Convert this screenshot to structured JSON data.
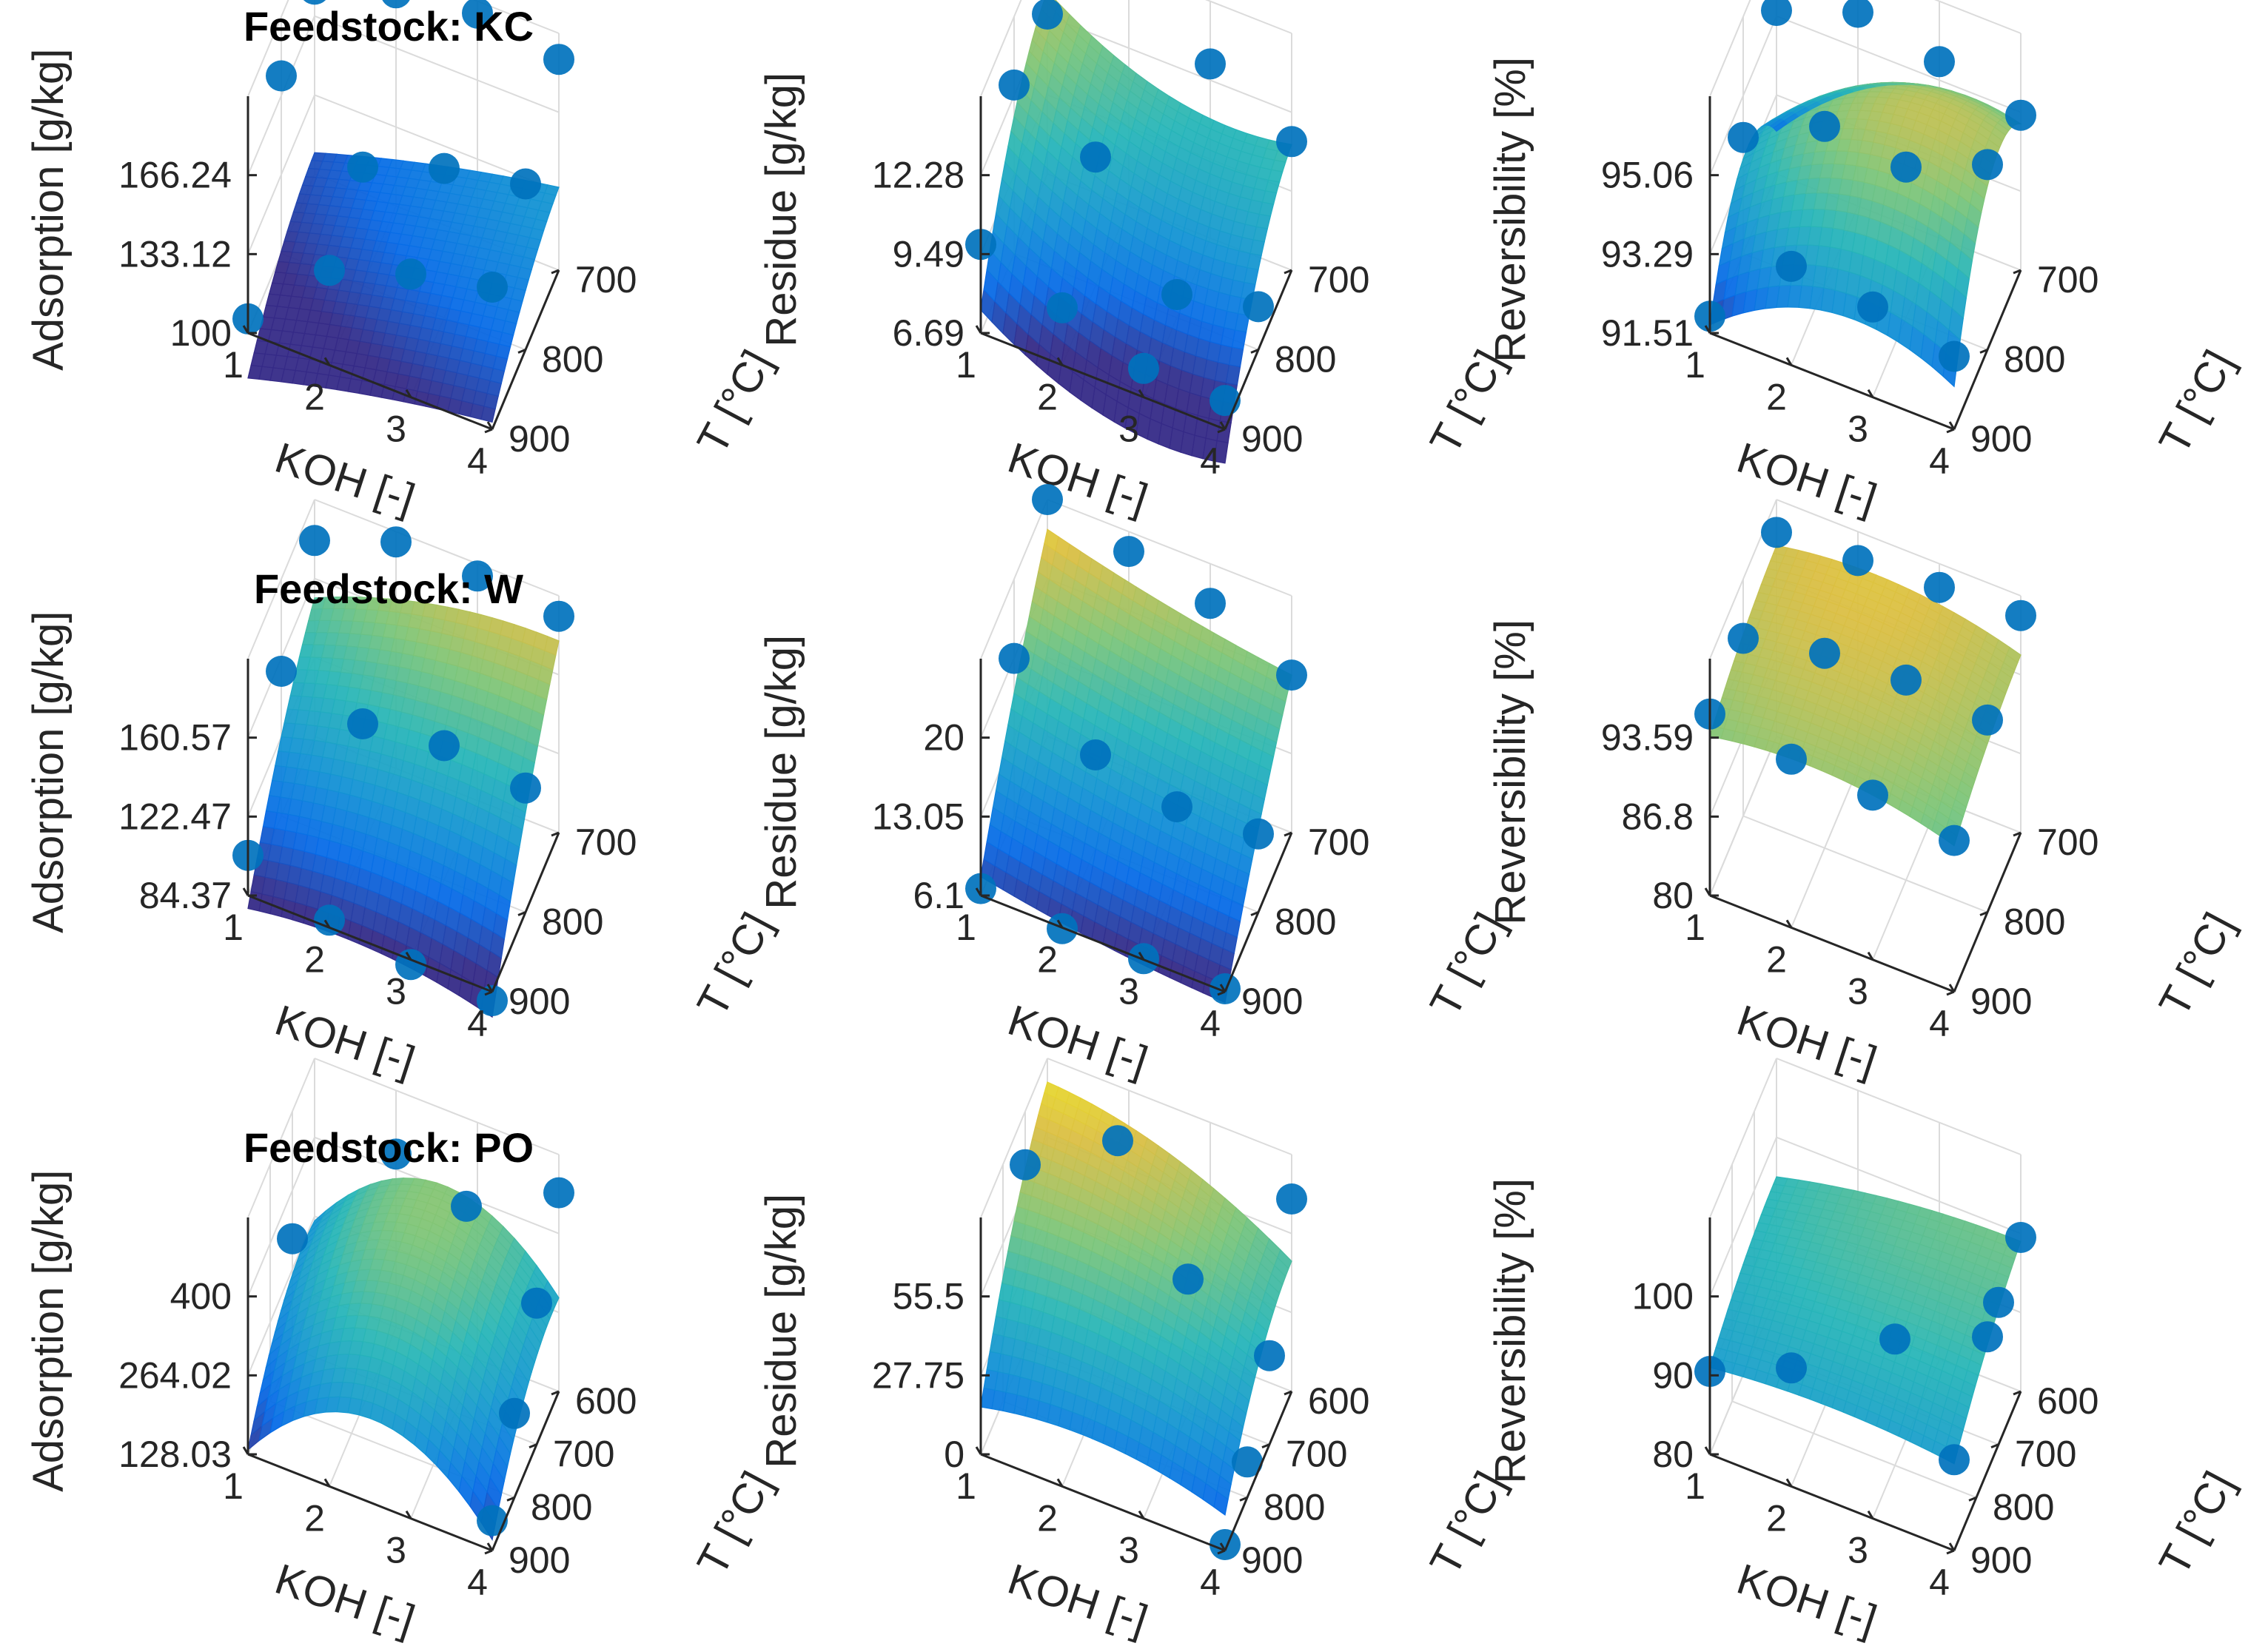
{
  "figure": {
    "colormap": "parula",
    "marker_color": "#0072BD",
    "grid_color": "#DBDBDB"
  },
  "chart_data": [
    {
      "type": "surface3d",
      "row": 0,
      "col": 0,
      "title": "Feedstock: KC",
      "xlabel": "KOH [-]",
      "ylabel": "T [°C]",
      "zlabel": "Adsorption [g/kg]",
      "x_ticks": [
        "1",
        "2",
        "3",
        "4"
      ],
      "y_ticks": [
        "700",
        "800",
        "900"
      ],
      "z_ticks": [
        "100",
        "133.12",
        "166.24"
      ],
      "x_range": [
        1,
        4
      ],
      "y_range": [
        700,
        900
      ],
      "z_range": [
        100,
        200
      ],
      "surface": {
        "c": 115,
        "ax": 12,
        "ay": 15,
        "bxx": -2,
        "byy": -6,
        "bxy": 1
      },
      "points": [
        [
          1,
          900,
          106
        ],
        [
          2,
          900,
          140
        ],
        [
          3,
          900,
          152
        ],
        [
          4,
          900,
          160
        ],
        [
          1,
          800,
          175
        ],
        [
          2,
          800,
          150
        ],
        [
          3,
          800,
          163
        ],
        [
          4,
          800,
          170
        ],
        [
          1,
          700,
          178
        ],
        [
          2,
          700,
          190
        ],
        [
          3,
          700,
          195
        ],
        [
          4,
          700,
          189
        ]
      ]
    },
    {
      "type": "surface3d",
      "row": 0,
      "col": 1,
      "title": "",
      "xlabel": "KOH [-]",
      "ylabel": "T [°C]",
      "zlabel": "Residue [g/kg]",
      "x_ticks": [
        "1",
        "2",
        "3",
        "4"
      ],
      "y_ticks": [
        "700",
        "800",
        "900"
      ],
      "z_ticks": [
        "6.69",
        "9.49",
        "12.28"
      ],
      "x_range": [
        1,
        4
      ],
      "y_range": [
        700,
        900
      ],
      "z_range": [
        6.69,
        15
      ],
      "surface": {
        "c": 9.5,
        "ax": -1,
        "ay": 2.8,
        "bxx": 1,
        "byy": -1.2,
        "bxy": 0
      },
      "points": [
        [
          1,
          900,
          9.8
        ],
        [
          2,
          900,
          8.7
        ],
        [
          3,
          900,
          7.7
        ],
        [
          4,
          900,
          7.7
        ],
        [
          1,
          800,
          12.6
        ],
        [
          2,
          800,
          11.2
        ],
        [
          3,
          800,
          7.5
        ],
        [
          4,
          800,
          8.2
        ],
        [
          1,
          700,
          12.3
        ],
        [
          2,
          700,
          14.5
        ],
        [
          3,
          700,
          12.8
        ],
        [
          4,
          700,
          11.2
        ]
      ]
    },
    {
      "type": "surface3d",
      "row": 0,
      "col": 2,
      "title": "",
      "xlabel": "KOH [-]",
      "ylabel": "T [°C]",
      "zlabel": "Reversibility [%]",
      "x_ticks": [
        "1",
        "2",
        "3",
        "4"
      ],
      "y_ticks": [
        "700",
        "800",
        "900"
      ],
      "z_ticks": [
        "91.51",
        "93.29",
        "95.06"
      ],
      "x_range": [
        1,
        4
      ],
      "y_range": [
        700,
        900
      ],
      "z_range": [
        91.51,
        97
      ],
      "surface": {
        "c": 95.5,
        "ax": 0.8,
        "ay": 0.8,
        "bxx": -1,
        "byy": -1.6,
        "bxy": 0.4
      },
      "points": [
        [
          1,
          900,
          91.9
        ],
        [
          2,
          900,
          93.8
        ],
        [
          3,
          900,
          93.6
        ],
        [
          4,
          900,
          93.2
        ],
        [
          1,
          800,
          94.2
        ],
        [
          2,
          800,
          95.2
        ],
        [
          3,
          800,
          95.0
        ],
        [
          4,
          800,
          95.8
        ],
        [
          1,
          700,
          95.3
        ],
        [
          2,
          700,
          96.0
        ],
        [
          3,
          700,
          95.6
        ],
        [
          4,
          700,
          95.1
        ]
      ]
    },
    {
      "type": "surface3d",
      "row": 1,
      "col": 0,
      "title": "Feedstock: W",
      "xlabel": "KOH [-]",
      "ylabel": "T [°C]",
      "zlabel": "Adsorption [g/kg]",
      "x_ticks": [
        "1",
        "2",
        "3",
        "4"
      ],
      "y_ticks": [
        "700",
        "800",
        "900"
      ],
      "z_ticks": [
        "84.37",
        "122.47",
        "160.57"
      ],
      "x_range": [
        1,
        4
      ],
      "y_range": [
        700,
        900
      ],
      "z_range": [
        84.37,
        200
      ],
      "surface": {
        "c": 135,
        "ax": 5,
        "ay": 45,
        "bxx": -7,
        "byy": -8,
        "bxy": 8
      },
      "points": [
        [
          1,
          900,
          104
        ],
        [
          2,
          900,
          88
        ],
        [
          3,
          900,
          82
        ],
        [
          4,
          900,
          80
        ],
        [
          1,
          800,
          155
        ],
        [
          2,
          800,
          145
        ],
        [
          3,
          800,
          150
        ],
        [
          4,
          800,
          145
        ],
        [
          1,
          700,
          180
        ],
        [
          2,
          700,
          195
        ],
        [
          3,
          700,
          194
        ],
        [
          4,
          700,
          190
        ]
      ]
    },
    {
      "type": "surface3d",
      "row": 1,
      "col": 1,
      "title": "",
      "xlabel": "KOH [-]",
      "ylabel": "T [°C]",
      "zlabel": "Residue [g/kg]",
      "x_ticks": [
        "1",
        "2",
        "3",
        "4"
      ],
      "y_ticks": [
        "700",
        "800",
        "900"
      ],
      "z_ticks": [
        "6.1",
        "13.05",
        "20"
      ],
      "x_range": [
        1,
        4
      ],
      "y_range": [
        700,
        900
      ],
      "z_range": [
        6.1,
        30
      ],
      "surface": {
        "c": 16,
        "ax": -2,
        "ay": 9,
        "bxx": 0.5,
        "byy": -1,
        "bxy": -0.5
      },
      "points": [
        [
          1,
          900,
          6.8
        ],
        [
          2,
          900,
          6.0
        ],
        [
          3,
          900,
          6.2
        ],
        [
          4,
          900,
          6.4
        ],
        [
          1,
          800,
          22
        ],
        [
          2,
          800,
          15.5
        ],
        [
          3,
          800,
          13.5
        ],
        [
          4,
          800,
          14
        ],
        [
          1,
          700,
          30
        ],
        [
          2,
          700,
          28
        ],
        [
          3,
          700,
          26
        ],
        [
          4,
          700,
          22
        ]
      ]
    },
    {
      "type": "surface3d",
      "row": 1,
      "col": 2,
      "title": "",
      "xlabel": "KOH [-]",
      "ylabel": "T [°C]",
      "zlabel": "Reversibility [%]",
      "x_ticks": [
        "1",
        "2",
        "3",
        "4"
      ],
      "y_ticks": [
        "700",
        "800",
        "900"
      ],
      "z_ticks": [
        "80",
        "86.8",
        "93.59"
      ],
      "x_range": [
        1,
        4
      ],
      "y_range": [
        700,
        900
      ],
      "z_range": [
        80,
        98
      ],
      "surface": {
        "c": 94.5,
        "ax": -0.5,
        "ay": 1.2,
        "bxx": -1.2,
        "byy": -0.5,
        "bxy": 0
      },
      "points": [
        [
          1,
          900,
          93.8
        ],
        [
          2,
          900,
          92.8
        ],
        [
          3,
          900,
          92.5
        ],
        [
          4,
          900,
          91.5
        ],
        [
          1,
          800,
          93.5
        ],
        [
          2,
          800,
          94.8
        ],
        [
          3,
          800,
          95.2
        ],
        [
          4,
          800,
          94.6
        ],
        [
          1,
          700,
          95.5
        ],
        [
          2,
          700,
          95.8
        ],
        [
          3,
          700,
          96.2
        ],
        [
          4,
          700,
          96.5
        ]
      ]
    },
    {
      "type": "surface3d",
      "row": 2,
      "col": 0,
      "title": "Feedstock: PO",
      "xlabel": "KOH [-]",
      "ylabel": "T [°C]",
      "zlabel": "Adsorption [g/kg]",
      "x_ticks": [
        "1",
        "2",
        "3",
        "4"
      ],
      "y_ticks": [
        "600",
        "700",
        "800",
        "900"
      ],
      "z_ticks": [
        "128.03",
        "264.02",
        "400"
      ],
      "x_range": [
        1,
        4
      ],
      "y_range": [
        600,
        900
      ],
      "z_range": [
        128.03,
        500
      ],
      "surface": {
        "c": 360,
        "ax": 10,
        "ay": 60,
        "bxx": -120,
        "byy": -40,
        "bxy": 5
      },
      "points": [
        [
          4,
          900,
          175
        ],
        [
          4,
          800,
          260
        ],
        [
          4,
          700,
          350
        ],
        [
          1,
          700,
          300
        ],
        [
          2,
          600,
          400
        ],
        [
          3,
          650,
          410
        ],
        [
          4,
          600,
          440
        ]
      ]
    },
    {
      "type": "surface3d",
      "row": 2,
      "col": 1,
      "title": "",
      "xlabel": "KOH [-]",
      "ylabel": "T [°C]",
      "zlabel": "Residue [g/kg]",
      "x_ticks": [
        "1",
        "2",
        "3",
        "4"
      ],
      "y_ticks": [
        "600",
        "700",
        "800",
        "900"
      ],
      "z_ticks": [
        "0",
        "27.75",
        "55.5"
      ],
      "x_range": [
        1,
        4
      ],
      "y_range": [
        600,
        900
      ],
      "z_range": [
        0,
        80
      ],
      "surface": {
        "c": 50,
        "ax": -8,
        "ay": 22,
        "bxx": -6,
        "byy": -8,
        "bxy": -6
      },
      "points": [
        [
          4,
          900,
          2
        ],
        [
          4,
          800,
          12
        ],
        [
          4,
          700,
          30
        ],
        [
          3,
          700,
          45
        ],
        [
          1,
          700,
          62
        ],
        [
          2,
          650,
          72
        ],
        [
          4,
          600,
          65
        ]
      ]
    },
    {
      "type": "surface3d",
      "row": 2,
      "col": 2,
      "title": "",
      "xlabel": "KOH [-]",
      "ylabel": "T [°C]",
      "zlabel": "Reversibility [%]",
      "x_ticks": [
        "1",
        "2",
        "3",
        "4"
      ],
      "y_ticks": [
        "600",
        "700",
        "800",
        "900"
      ],
      "z_ticks": [
        "80",
        "90",
        "100"
      ],
      "x_range": [
        1,
        4
      ],
      "y_range": [
        600,
        900
      ],
      "z_range": [
        80,
        110
      ],
      "surface": {
        "c": 96,
        "ax": 1,
        "ay": 3,
        "bxx": -1,
        "byy": -1,
        "bxy": 1
      },
      "points": [
        [
          1,
          900,
          90.5
        ],
        [
          2,
          900,
          95
        ],
        [
          3,
          800,
          96
        ],
        [
          4,
          900,
          91.5
        ],
        [
          4,
          750,
          97
        ],
        [
          4,
          700,
          98
        ],
        [
          4,
          600,
          99.5
        ]
      ]
    }
  ]
}
